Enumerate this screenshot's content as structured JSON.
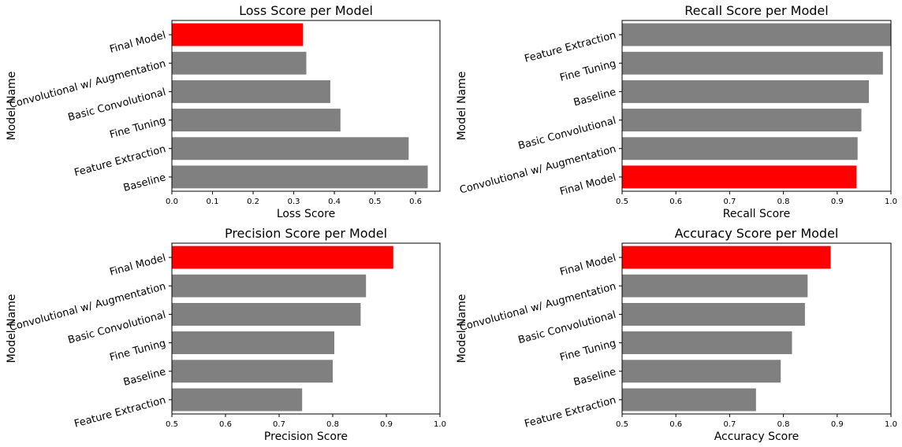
{
  "colors": {
    "default_bar": "#808080",
    "highlight_bar": "#ff0000"
  },
  "chart_data": [
    {
      "type": "bar",
      "orientation": "horizontal",
      "title": "Loss Score per Model",
      "xlabel": "Loss Score",
      "ylabel": "Model Name",
      "xlim": [
        0,
        0.66
      ],
      "xticks": [
        "0.0",
        "0.1",
        "0.2",
        "0.3",
        "0.4",
        "0.5",
        "0.6"
      ],
      "categories": [
        "Baseline",
        "Feature Extraction",
        "Fine Tuning",
        "Basic Convolutional",
        "Convolutional w/ Augmentation",
        "Final Model"
      ],
      "values": [
        0.63,
        0.583,
        0.415,
        0.39,
        0.331,
        0.323
      ],
      "highlight": "Final Model",
      "grid": false
    },
    {
      "type": "bar",
      "orientation": "horizontal",
      "title": "Recall Score per Model",
      "xlabel": "Recall Score",
      "ylabel": "Model Name",
      "xlim": [
        0.5,
        1.0
      ],
      "xticks": [
        "0.5",
        "0.6",
        "0.7",
        "0.8",
        "0.9",
        "1.0"
      ],
      "categories": [
        "Final Model",
        "Convolutional w/ Augmentation",
        "Basic Convolutional",
        "Baseline",
        "Fine Tuning",
        "Feature Extraction"
      ],
      "values": [
        0.936,
        0.938,
        0.945,
        0.959,
        0.985,
        1.0
      ],
      "highlight": "Final Model",
      "grid": false
    },
    {
      "type": "bar",
      "orientation": "horizontal",
      "title": "Precision Score per Model",
      "xlabel": "Precision Score",
      "ylabel": "Model Name",
      "xlim": [
        0.5,
        1.0
      ],
      "xticks": [
        "0.5",
        "0.6",
        "0.7",
        "0.8",
        "0.9",
        "1.0"
      ],
      "categories": [
        "Feature Extraction",
        "Baseline",
        "Fine Tuning",
        "Basic Convolutional",
        "Convolutional w/ Augmentation",
        "Final Model"
      ],
      "values": [
        0.743,
        0.8,
        0.803,
        0.852,
        0.862,
        0.913
      ],
      "highlight": "Final Model",
      "grid": false
    },
    {
      "type": "bar",
      "orientation": "horizontal",
      "title": "Accuracy Score per Model",
      "xlabel": "Accuracy Score",
      "ylabel": "Model Name",
      "xlim": [
        0.5,
        1.0
      ],
      "xticks": [
        "0.5",
        "0.6",
        "0.7",
        "0.8",
        "0.9",
        "1.0"
      ],
      "categories": [
        "Feature Extraction",
        "Baseline",
        "Fine Tuning",
        "Basic Convolutional",
        "Convolutional w/ Augmentation",
        "Final Model"
      ],
      "values": [
        0.749,
        0.795,
        0.816,
        0.84,
        0.845,
        0.888
      ],
      "highlight": "Final Model",
      "grid": false
    }
  ]
}
